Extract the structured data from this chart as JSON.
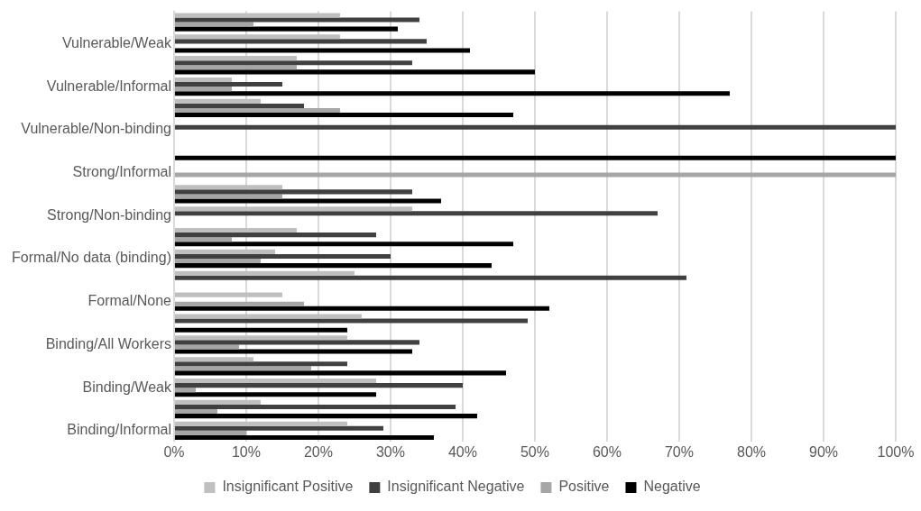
{
  "chart_data": {
    "type": "bar",
    "orientation": "horizontal",
    "categories": [
      null,
      "Vulnerable/Weak",
      null,
      "Vulnerable/Informal",
      null,
      "Vulnerable/Non-binding",
      null,
      "Strong/Informal",
      null,
      "Strong/Non-binding",
      null,
      "Formal/No data (binding)",
      null,
      "Formal/None",
      null,
      "Binding/All Workers",
      null,
      "Binding/Weak",
      null,
      "Binding/Informal"
    ],
    "series": [
      {
        "name": "Insignificant Positive",
        "color": "#bfbfbf",
        "values": [
          23,
          23,
          17,
          8,
          12,
          null,
          null,
          null,
          15,
          33,
          17,
          14,
          25,
          15,
          26,
          24,
          11,
          28,
          12,
          24
        ]
      },
      {
        "name": "Insignificant Negative",
        "color": "#404040",
        "values": [
          34,
          35,
          33,
          15,
          18,
          100,
          null,
          null,
          33,
          67,
          28,
          30,
          71,
          null,
          49,
          34,
          24,
          40,
          39,
          29
        ]
      },
      {
        "name": "Positive",
        "color": "#a6a6a6",
        "values": [
          11,
          null,
          17,
          8,
          23,
          null,
          null,
          100,
          15,
          null,
          8,
          12,
          null,
          18,
          null,
          9,
          19,
          3,
          6,
          10
        ]
      },
      {
        "name": "Negative",
        "color": "#000000",
        "values": [
          31,
          41,
          50,
          77,
          47,
          null,
          100,
          null,
          37,
          null,
          47,
          44,
          null,
          52,
          24,
          33,
          46,
          28,
          42,
          36
        ]
      }
    ],
    "xlim": [
      0,
      100
    ],
    "xticks": [
      {
        "value": 0,
        "label": "0%"
      },
      {
        "value": 10,
        "label": "10%"
      },
      {
        "value": 20,
        "label": "20%"
      },
      {
        "value": 30,
        "label": "30%"
      },
      {
        "value": 40,
        "label": "40%"
      },
      {
        "value": 50,
        "label": "50%"
      },
      {
        "value": 60,
        "label": "60%"
      },
      {
        "value": 70,
        "label": "70%"
      },
      {
        "value": 80,
        "label": "80%"
      },
      {
        "value": 90,
        "label": "90%"
      },
      {
        "value": 100,
        "label": "100%"
      }
    ],
    "grid": "x",
    "legend": "bottom"
  }
}
